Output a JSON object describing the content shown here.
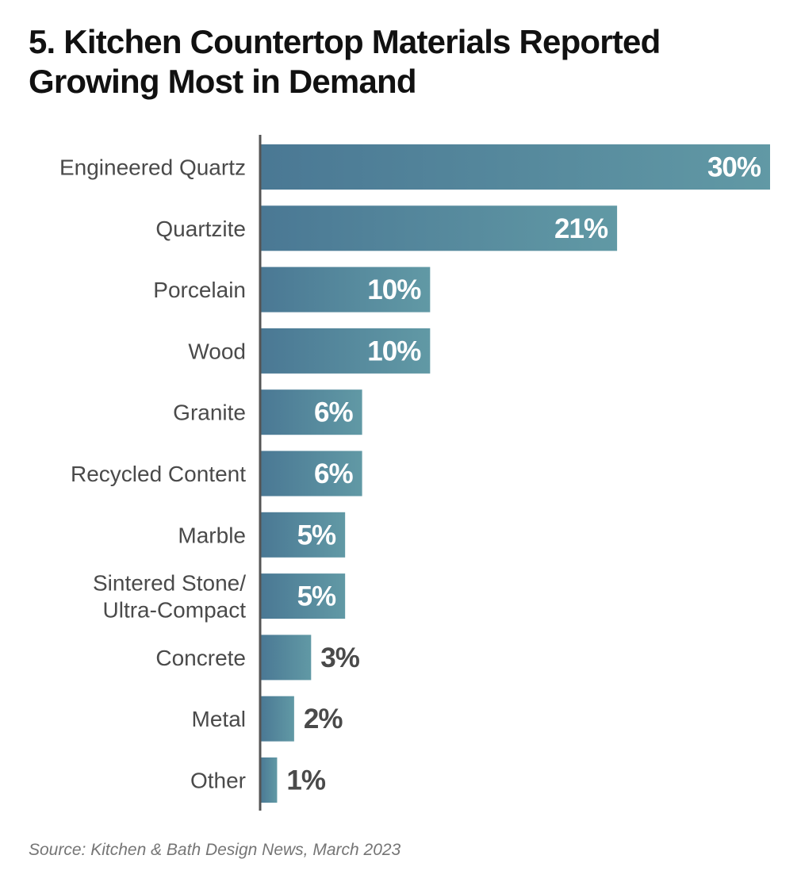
{
  "title": {
    "line1": "5. Kitchen Countertop Materials Reported",
    "line2": "Growing Most in Demand"
  },
  "source": "Source: Kitchen & Bath Design News, March 2023",
  "colors": {
    "bar_dark": "#4a7894",
    "bar_light": "#6199a5",
    "axis": "#555555",
    "category_text": "#4a4a4a",
    "label_inside": "#ffffff",
    "label_outside": "#4a4a4a"
  },
  "chart_data": {
    "type": "bar",
    "orientation": "horizontal",
    "title": "5. Kitchen Countertop Materials Reported Growing Most in Demand",
    "xlabel": "",
    "ylabel": "",
    "xlim": [
      0,
      30
    ],
    "grid": false,
    "legend": "none",
    "categories": [
      [
        "Engineered Quartz"
      ],
      [
        "Quartzite"
      ],
      [
        "Porcelain"
      ],
      [
        "Wood"
      ],
      [
        "Granite"
      ],
      [
        "Recycled Content"
      ],
      [
        "Marble"
      ],
      [
        "Sintered Stone/",
        "Ultra-Compact"
      ],
      [
        "Concrete"
      ],
      [
        "Metal"
      ],
      [
        "Other"
      ]
    ],
    "values": [
      30,
      21,
      10,
      10,
      6,
      6,
      5,
      5,
      3,
      2,
      1
    ],
    "value_labels": [
      "30%",
      "21%",
      "10%",
      "10%",
      "6%",
      "6%",
      "5%",
      "5%",
      "3%",
      "2%",
      "1%"
    ]
  }
}
